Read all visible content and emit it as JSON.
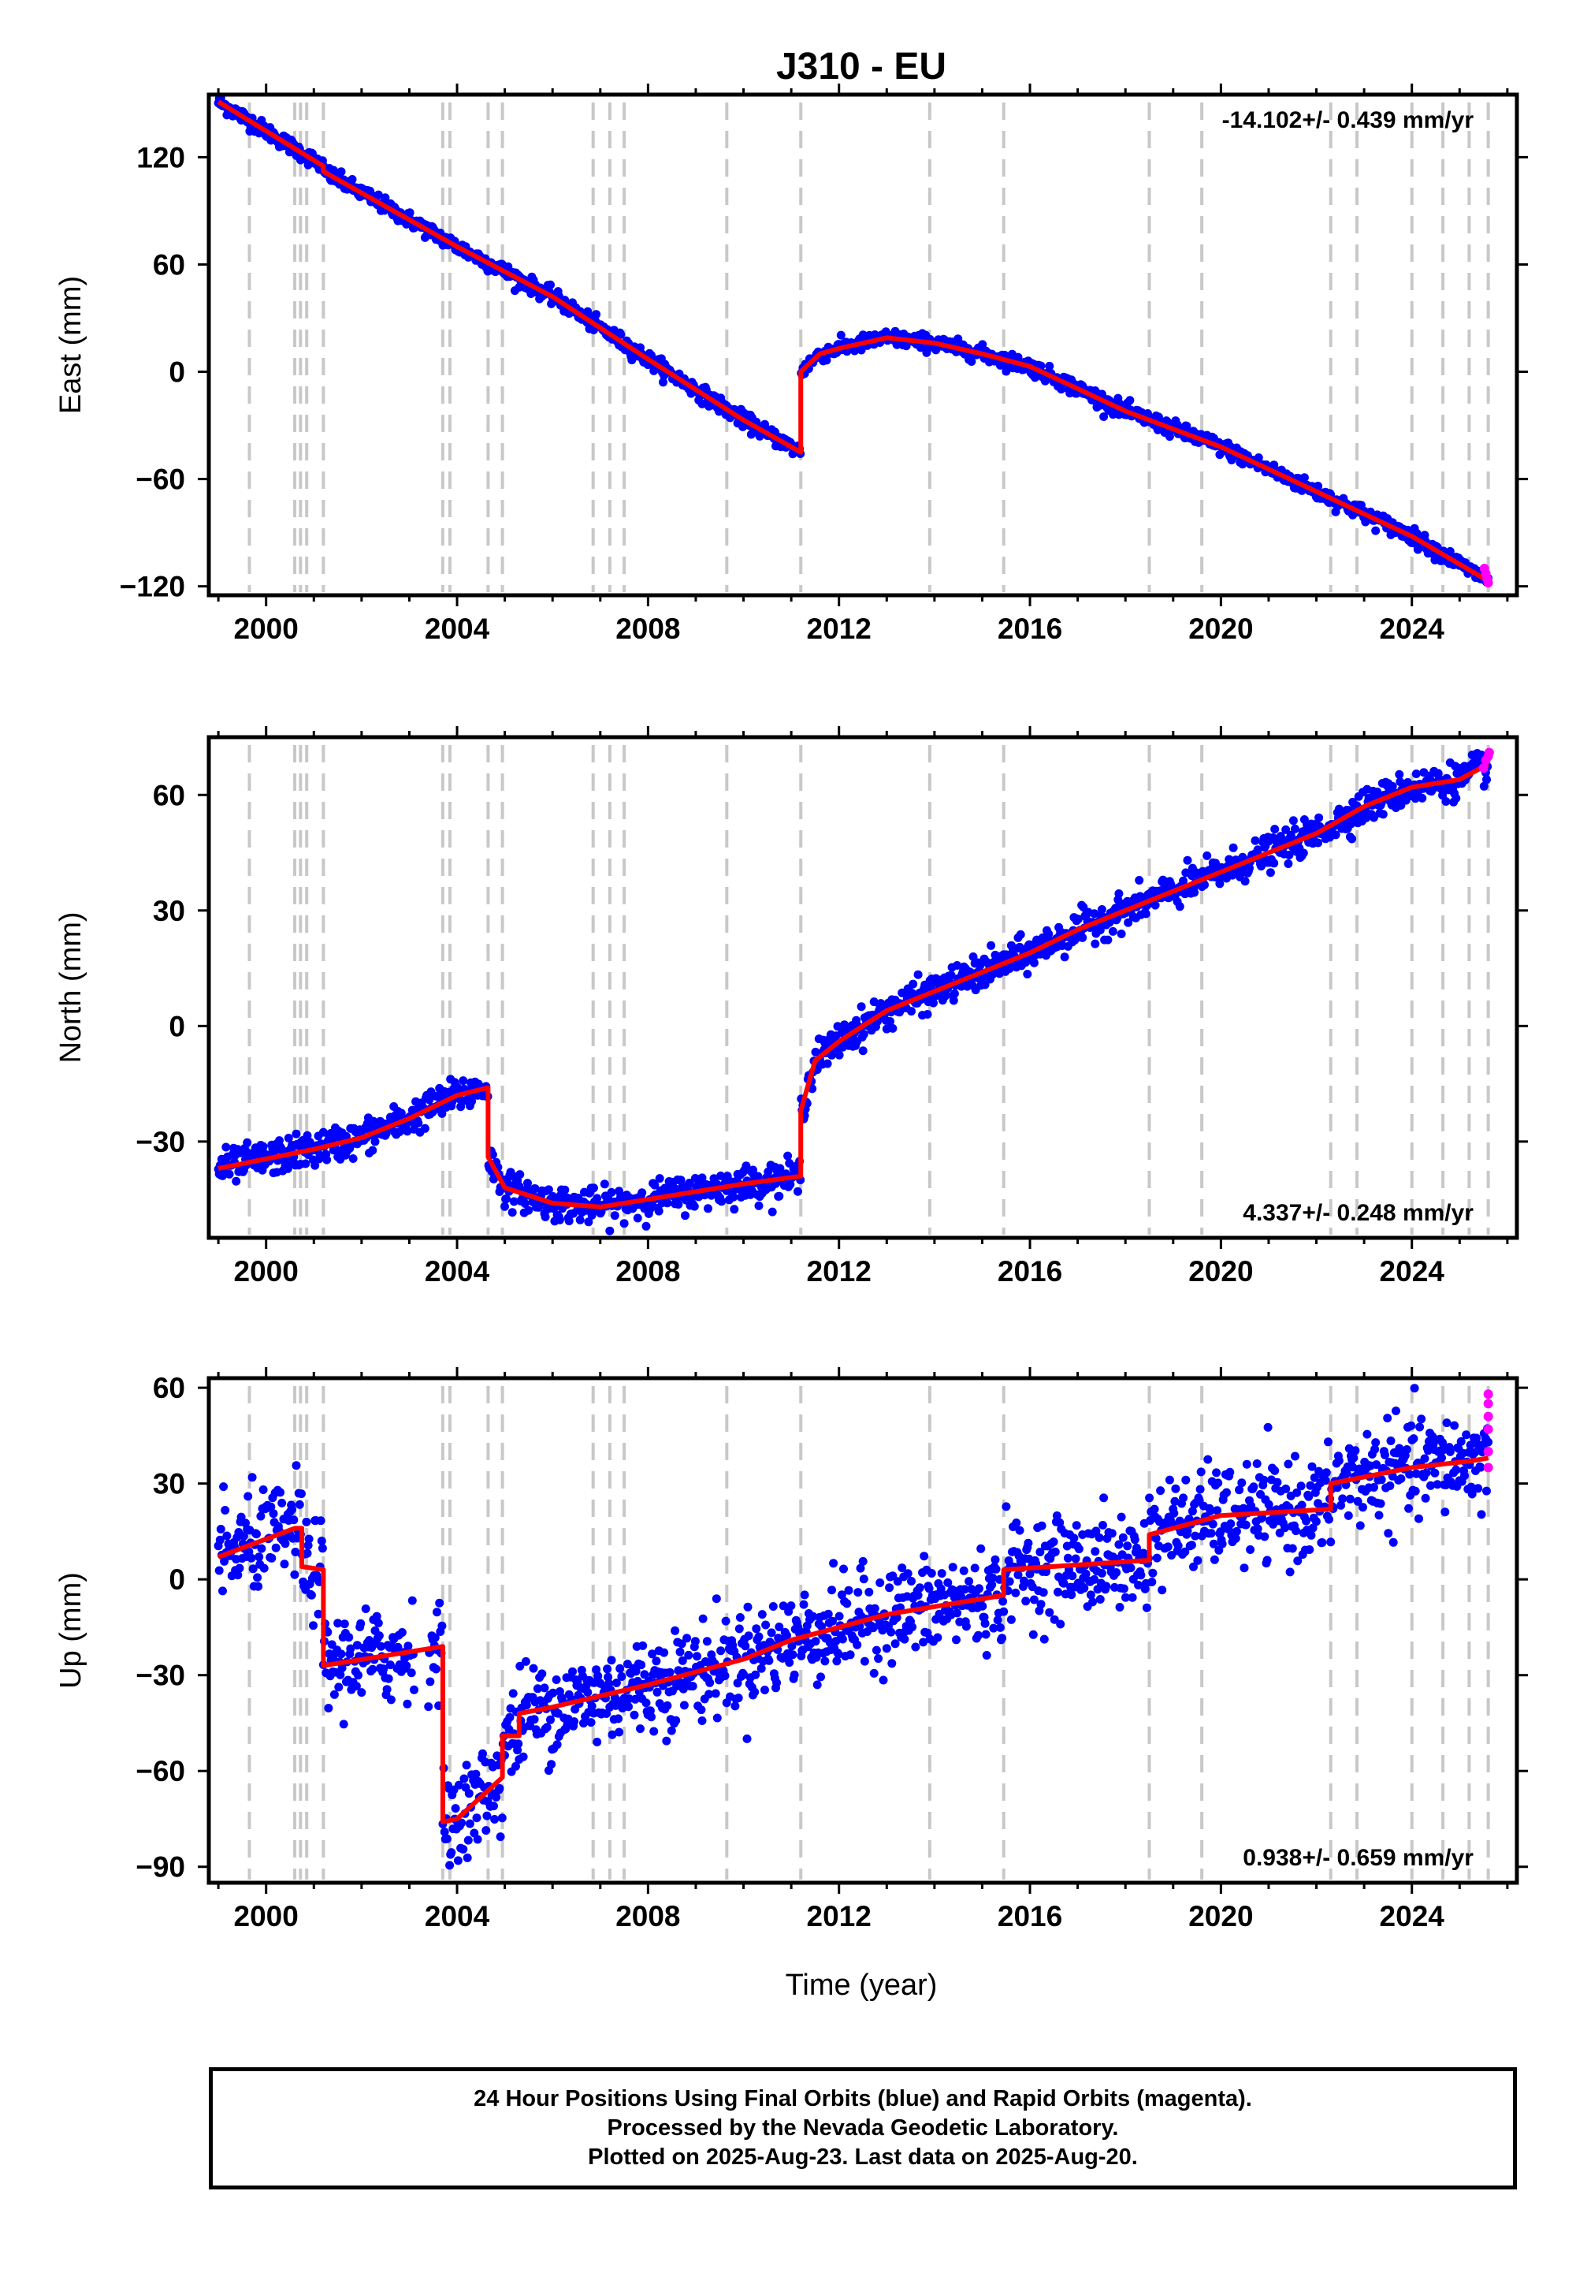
{
  "title": "J310 - EU",
  "xlabel": "Time (year)",
  "xticks": [
    2000,
    2004,
    2008,
    2012,
    2016,
    2020,
    2024
  ],
  "xlim": [
    1998.8,
    2026.2
  ],
  "event_lines": [
    1999.65,
    2000.6,
    2000.72,
    2000.85,
    2001.2,
    2003.7,
    2003.85,
    2004.65,
    2004.95,
    2006.85,
    2007.2,
    2007.5,
    2009.65,
    2011.2,
    2013.9,
    2015.45,
    2018.5,
    2019.6,
    2022.3,
    2022.85,
    2024.0,
    2024.65,
    2025.2,
    2025.6
  ],
  "colors": {
    "final": "#0000ff",
    "rapid": "#ff00ff",
    "model": "#ff0000",
    "event_line": "#c8c8c8"
  },
  "chart_data": [
    {
      "type": "scatter",
      "panel": "east",
      "ylabel": "East (mm)",
      "ylim": [
        -125,
        155
      ],
      "yticks": [
        -120,
        -60,
        0,
        60,
        120
      ],
      "rate_label": "-14.102+/- 0.439 mm/yr",
      "rate_position": "top-right",
      "noise": 2.2,
      "model": {
        "x": [
          1999.0,
          2001.2,
          2001.2,
          2004.0,
          2006.0,
          2008.0,
          2010.0,
          2011.2,
          2011.2,
          2011.6,
          2012.0,
          2013.0,
          2014.0,
          2015.0,
          2016.0,
          2018.0,
          2020.0,
          2022.0,
          2024.0,
          2025.6
        ],
        "y": [
          151,
          115,
          112,
          70,
          42,
          7,
          -27,
          -45,
          0,
          10,
          13,
          19,
          16,
          10,
          3,
          -22,
          -42,
          -67,
          -92,
          -117
        ]
      },
      "rapid": {
        "x": [
          2025.52,
          2025.55,
          2025.58,
          2025.6
        ],
        "y": [
          -110,
          -113,
          -116,
          -118
        ]
      }
    },
    {
      "type": "scatter",
      "panel": "north",
      "ylabel": "North (mm)",
      "ylim": [
        -55,
        75
      ],
      "yticks": [
        -30,
        0,
        30,
        60
      ],
      "rate_label": "4.337+/- 0.248 mm/yr",
      "rate_position": "bottom-right",
      "noise": 2.2,
      "model": {
        "x": [
          1999.0,
          2001.0,
          2002.0,
          2003.0,
          2004.0,
          2004.65,
          2004.65,
          2005.0,
          2006.0,
          2007.0,
          2008.0,
          2009.0,
          2010.0,
          2011.2,
          2011.2,
          2011.5,
          2012.0,
          2012.5,
          2013.0,
          2014.0,
          2015.0,
          2016.0,
          2017.0,
          2018.0,
          2019.0,
          2020.0,
          2021.0,
          2022.0,
          2023.0,
          2024.0,
          2025.0,
          2025.6
        ],
        "y": [
          -37,
          -32,
          -29,
          -24,
          -18,
          -16,
          -34,
          -42,
          -46,
          -47,
          -45,
          -43,
          -41,
          -39,
          -22,
          -9,
          -4,
          0,
          4,
          9,
          14,
          19,
          25,
          30,
          35,
          40,
          45,
          50,
          57,
          62,
          64,
          68
        ]
      },
      "rapid": {
        "x": [
          2025.5,
          2025.55,
          2025.6,
          2025.62
        ],
        "y": [
          67,
          69,
          70,
          71
        ]
      }
    },
    {
      "type": "scatter",
      "panel": "up",
      "ylabel": "Up (mm)",
      "ylim": [
        -95,
        63
      ],
      "yticks": [
        -90,
        -60,
        -30,
        0,
        30,
        60
      ],
      "rate_label": "0.938+/- 0.659 mm/yr",
      "rate_position": "bottom-right",
      "noise": 7.5,
      "gap": [
        2003.1,
        2003.4
      ],
      "model": {
        "x": [
          1999.0,
          2000.6,
          2000.75,
          2000.75,
          2001.2,
          2001.2,
          2003.7,
          2003.7,
          2004.0,
          2004.95,
          2004.95,
          2005.3,
          2005.3,
          2006.0,
          2008.0,
          2010.0,
          2011.0,
          2013.0,
          2015.45,
          2015.45,
          2018.5,
          2018.5,
          2020.0,
          2022.3,
          2022.3,
          2024.0,
          2025.2,
          2025.6
        ],
        "y": [
          7,
          16,
          16,
          4,
          3,
          -27,
          -21,
          -76,
          -75,
          -62,
          -49,
          -49,
          -42,
          -40,
          -33,
          -25,
          -19,
          -11,
          -5,
          3,
          6,
          14,
          20,
          22,
          30,
          35,
          37,
          38
        ]
      },
      "rapid": {
        "x": [
          2025.6,
          2025.6,
          2025.6,
          2025.6,
          2025.6,
          2025.6
        ],
        "y": [
          58,
          55,
          51,
          47,
          40,
          35
        ]
      }
    }
  ],
  "footer": {
    "line1": "24 Hour Positions Using Final Orbits (blue) and Rapid Orbits (magenta).",
    "line2": "Processed by the Nevada Geodetic Laboratory.",
    "line3": "Plotted on 2025-Aug-23. Last data on 2025-Aug-20."
  }
}
